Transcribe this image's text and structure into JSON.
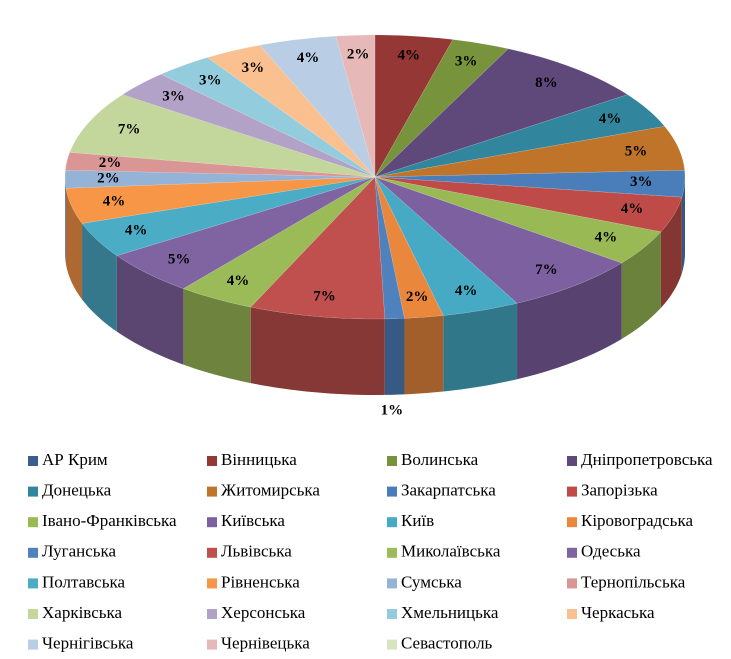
{
  "chart_data": {
    "type": "pie3d",
    "categories": [
      "АР Крим",
      "Вінницька",
      "Волинська",
      "Дніпропетровська",
      "Донецька",
      "Житомирська",
      "Закарпатська",
      "Запорізька",
      "Івано-Франківська",
      "Київська",
      "Київ",
      "Кіровоградська",
      "Луганська",
      "Львівська",
      "Миколаївська",
      "Одеська",
      "Полтавська",
      "Рівненська",
      "Сумська",
      "Тернопільська",
      "Харківська",
      "Херсонська",
      "Хмельницька",
      "Черкаська",
      "Чернігівська",
      "Чернівецька",
      "Севастополь"
    ],
    "values": [
      0,
      4,
      3,
      8,
      4,
      5,
      3,
      4,
      4,
      7,
      4,
      2,
      1,
      7,
      4,
      5,
      4,
      4,
      2,
      2,
      7,
      3,
      3,
      3,
      4,
      2,
      0
    ],
    "value_labels": [
      null,
      "4%",
      "3%",
      "8%",
      "4%",
      "5%",
      "3%",
      "4%",
      "4%",
      "7%",
      "4%",
      "2%",
      "1%",
      "7%",
      "4%",
      "5%",
      "4%",
      "4%",
      "2%",
      "2%",
      "7%",
      "3%",
      "3%",
      "3%",
      "4%",
      "2%",
      null
    ],
    "colors": [
      "#3a5f8f",
      "#953735",
      "#77933c",
      "#5f497a",
      "#31859c",
      "#c0742a",
      "#4a7ebb",
      "#be4b48",
      "#98b954",
      "#7d60a0",
      "#46aac5",
      "#e9873d",
      "#4f81bd",
      "#c0504d",
      "#9bbb59",
      "#8064a2",
      "#4bacc6",
      "#f79646",
      "#95b3d7",
      "#d99694",
      "#c3d69b",
      "#b3a2c7",
      "#93cddd",
      "#fac090",
      "#b9cde5",
      "#e6b9b8",
      "#d7e4bd"
    ],
    "legend": "bottom"
  }
}
